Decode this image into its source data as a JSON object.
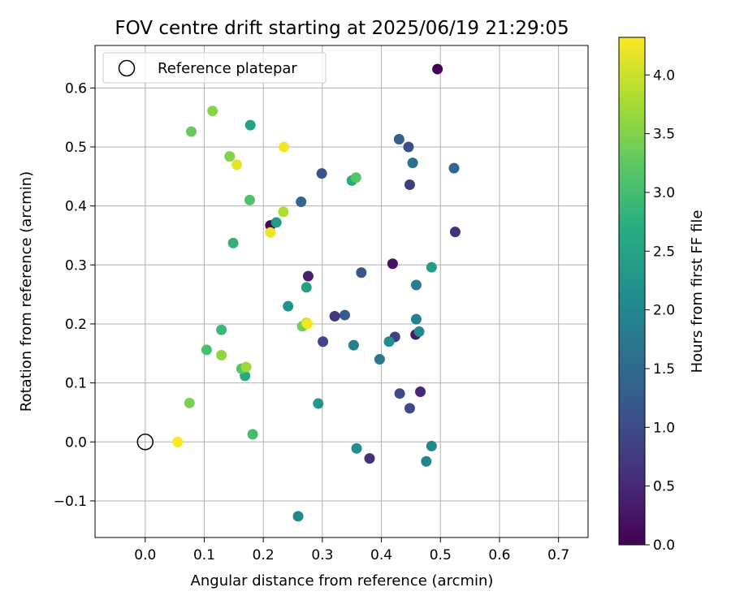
{
  "chart_data": {
    "type": "scatter",
    "title": "FOV centre drift starting at 2025/06/19 21:29:05",
    "xlabel": "Angular distance from reference (arcmin)",
    "ylabel": "Rotation from reference (arcmin)",
    "xlim": [
      -0.085,
      0.75
    ],
    "ylim": [
      -0.162,
      0.672
    ],
    "x_ticks": [
      0.0,
      0.1,
      0.2,
      0.3,
      0.4,
      0.5,
      0.6,
      0.7
    ],
    "x_tick_labels": [
      "0.0",
      "0.1",
      "0.2",
      "0.3",
      "0.4",
      "0.5",
      "0.6",
      "0.7"
    ],
    "y_ticks": [
      -0.1,
      0.0,
      0.1,
      0.2,
      0.3,
      0.4,
      0.5,
      0.6
    ],
    "y_tick_labels": [
      "−0.1",
      "0.0",
      "0.1",
      "0.2",
      "0.3",
      "0.4",
      "0.5",
      "0.6"
    ],
    "grid": true,
    "legend_position": "top-left",
    "legend": [
      {
        "label": "Reference platepar",
        "marker": "open-circle",
        "color": "#000000"
      }
    ],
    "reference_point": {
      "x": 0.0,
      "y": 0.0
    },
    "colorbar": {
      "label": "Hours from first FF file",
      "colormap": "viridis",
      "range": [
        0.0,
        4.32
      ],
      "ticks": [
        0.0,
        0.5,
        1.0,
        1.5,
        2.0,
        2.5,
        3.0,
        3.5,
        4.0
      ],
      "tick_labels": [
        "0.0",
        "0.5",
        "1.0",
        "1.5",
        "2.0",
        "2.5",
        "3.0",
        "3.5",
        "4.0"
      ]
    },
    "points": [
      {
        "x": 0.495,
        "y": 0.632,
        "h": 0.0
      },
      {
        "x": 0.212,
        "y": 0.367,
        "h": 0.1
      },
      {
        "x": 0.419,
        "y": 0.302,
        "h": 0.2
      },
      {
        "x": 0.458,
        "y": 0.182,
        "h": 0.3
      },
      {
        "x": 0.276,
        "y": 0.281,
        "h": 0.4
      },
      {
        "x": 0.466,
        "y": 0.085,
        "h": 0.5
      },
      {
        "x": 0.525,
        "y": 0.356,
        "h": 0.6
      },
      {
        "x": 0.38,
        "y": -0.028,
        "h": 0.6
      },
      {
        "x": 0.321,
        "y": 0.213,
        "h": 0.7
      },
      {
        "x": 0.448,
        "y": 0.436,
        "h": 0.8
      },
      {
        "x": 0.423,
        "y": 0.178,
        "h": 0.85
      },
      {
        "x": 0.301,
        "y": 0.17,
        "h": 0.9
      },
      {
        "x": 0.431,
        "y": 0.082,
        "h": 1.0
      },
      {
        "x": 0.448,
        "y": 0.057,
        "h": 1.0
      },
      {
        "x": 0.446,
        "y": 0.5,
        "h": 1.05
      },
      {
        "x": 0.299,
        "y": 0.455,
        "h": 1.1
      },
      {
        "x": 0.366,
        "y": 0.287,
        "h": 1.15
      },
      {
        "x": 0.338,
        "y": 0.215,
        "h": 1.25
      },
      {
        "x": 0.43,
        "y": 0.513,
        "h": 1.3
      },
      {
        "x": 0.264,
        "y": 0.407,
        "h": 1.4
      },
      {
        "x": 0.523,
        "y": 0.464,
        "h": 1.45
      },
      {
        "x": 0.453,
        "y": 0.473,
        "h": 1.6
      },
      {
        "x": 0.397,
        "y": 0.14,
        "h": 1.75
      },
      {
        "x": 0.459,
        "y": 0.266,
        "h": 1.85
      },
      {
        "x": 0.459,
        "y": 0.208,
        "h": 1.9
      },
      {
        "x": 0.353,
        "y": 0.164,
        "h": 1.9
      },
      {
        "x": 0.476,
        "y": -0.033,
        "h": 1.95
      },
      {
        "x": 0.485,
        "y": -0.007,
        "h": 2.0
      },
      {
        "x": 0.259,
        "y": -0.126,
        "h": 2.0
      },
      {
        "x": 0.464,
        "y": 0.187,
        "h": 2.05
      },
      {
        "x": 0.413,
        "y": 0.17,
        "h": 2.1
      },
      {
        "x": 0.358,
        "y": -0.011,
        "h": 2.15
      },
      {
        "x": 0.242,
        "y": 0.23,
        "h": 2.2
      },
      {
        "x": 0.293,
        "y": 0.065,
        "h": 2.3
      },
      {
        "x": 0.222,
        "y": 0.372,
        "h": 2.35
      },
      {
        "x": 0.485,
        "y": 0.296,
        "h": 2.4
      },
      {
        "x": 0.273,
        "y": 0.262,
        "h": 2.45
      },
      {
        "x": 0.178,
        "y": 0.537,
        "h": 2.5
      },
      {
        "x": 0.169,
        "y": 0.112,
        "h": 2.6
      },
      {
        "x": 0.35,
        "y": 0.443,
        "h": 2.65
      },
      {
        "x": 0.149,
        "y": 0.337,
        "h": 2.8
      },
      {
        "x": 0.129,
        "y": 0.19,
        "h": 2.9
      },
      {
        "x": 0.182,
        "y": 0.013,
        "h": 3.0
      },
      {
        "x": 0.104,
        "y": 0.156,
        "h": 3.05
      },
      {
        "x": 0.177,
        "y": 0.41,
        "h": 3.1
      },
      {
        "x": 0.357,
        "y": 0.448,
        "h": 3.15
      },
      {
        "x": 0.163,
        "y": 0.124,
        "h": 3.2
      },
      {
        "x": 0.078,
        "y": 0.526,
        "h": 3.3
      },
      {
        "x": 0.266,
        "y": 0.196,
        "h": 3.4
      },
      {
        "x": 0.075,
        "y": 0.066,
        "h": 3.45
      },
      {
        "x": 0.143,
        "y": 0.484,
        "h": 3.5
      },
      {
        "x": 0.114,
        "y": 0.561,
        "h": 3.55
      },
      {
        "x": 0.129,
        "y": 0.147,
        "h": 3.6
      },
      {
        "x": 0.171,
        "y": 0.127,
        "h": 3.7
      },
      {
        "x": 0.234,
        "y": 0.39,
        "h": 3.8
      },
      {
        "x": 0.273,
        "y": 0.202,
        "h": 4.0
      },
      {
        "x": 0.155,
        "y": 0.47,
        "h": 4.15
      },
      {
        "x": 0.212,
        "y": 0.355,
        "h": 4.2
      },
      {
        "x": 0.235,
        "y": 0.5,
        "h": 4.25
      },
      {
        "x": 0.275,
        "y": 0.2,
        "h": 4.25
      },
      {
        "x": 0.055,
        "y": 0.0,
        "h": 4.3
      }
    ]
  }
}
